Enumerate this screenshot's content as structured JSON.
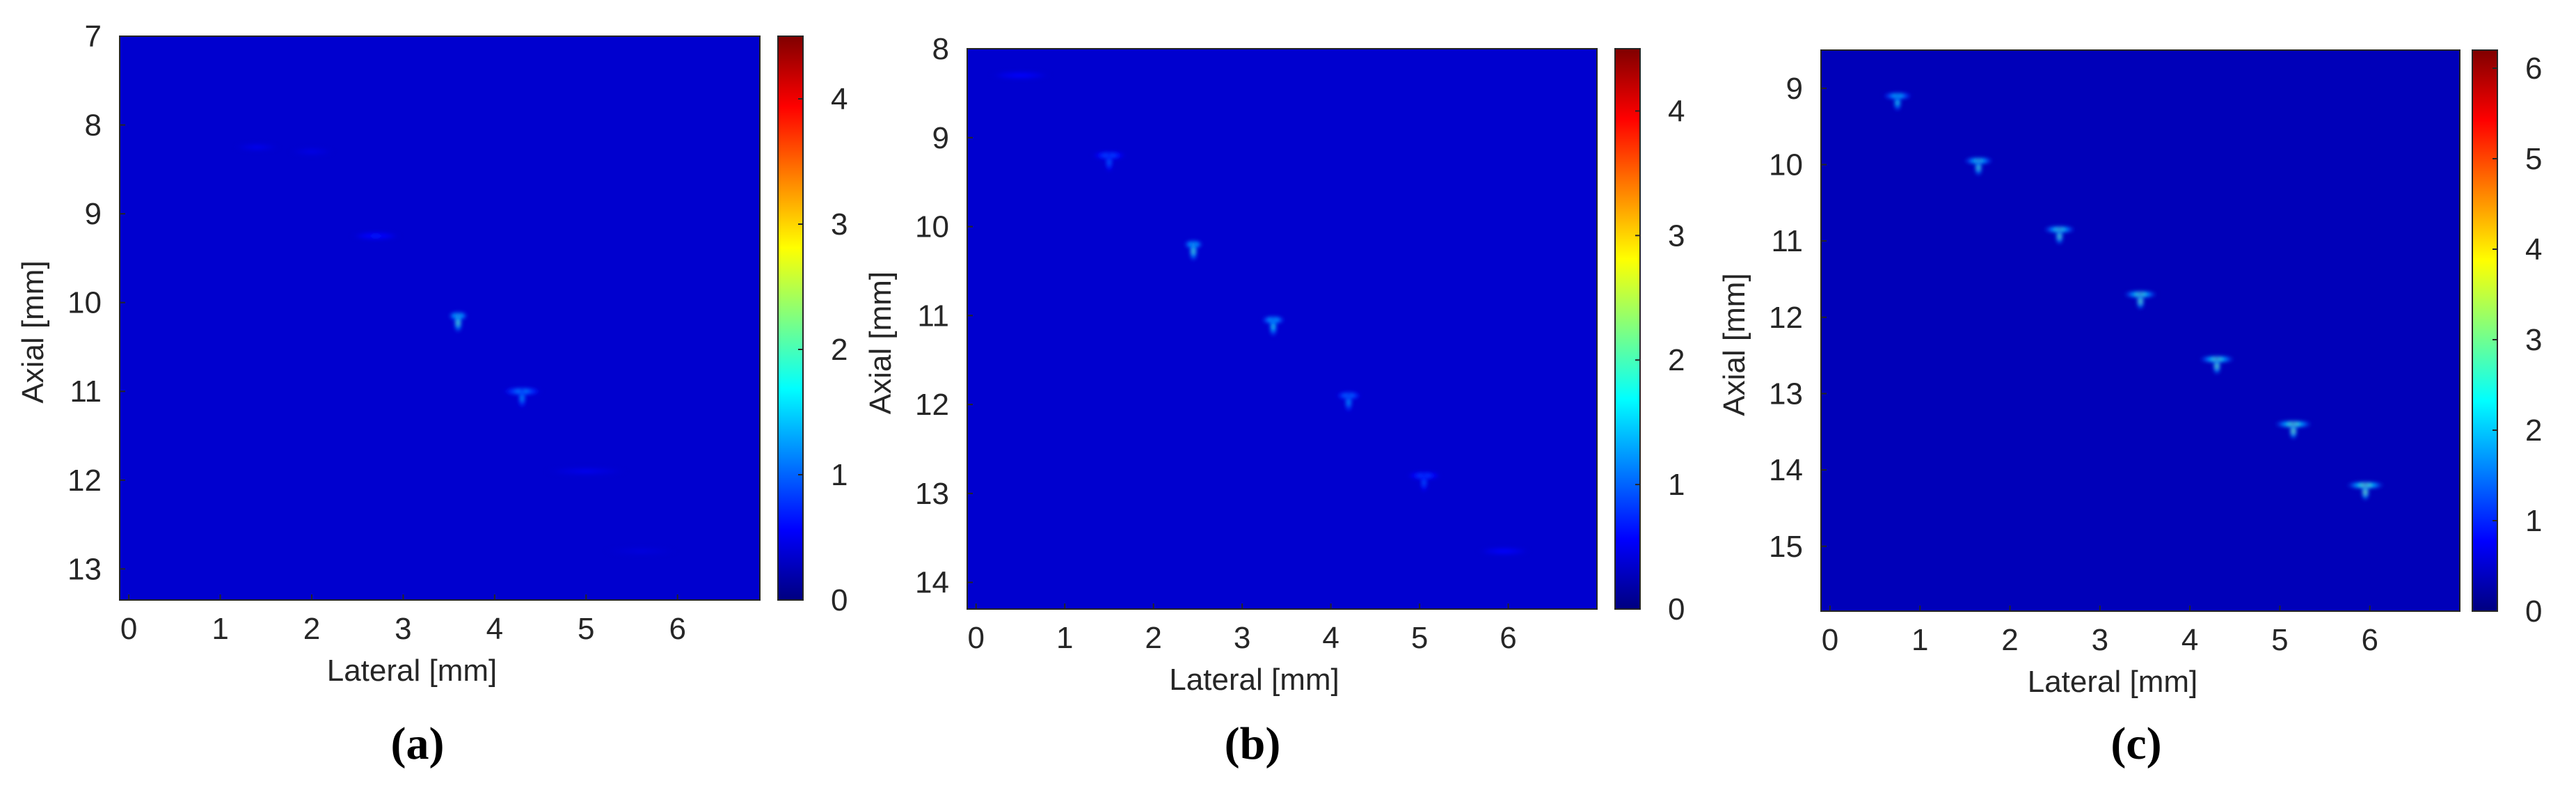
{
  "colors": {
    "background": "#1a0f8c",
    "colormap": "jet",
    "axis": "#262626"
  },
  "chart_data": [
    {
      "type": "heatmap",
      "panel_label": "(a)",
      "xlabel": "Lateral [mm]",
      "ylabel": "Axial [mm]",
      "xlim": [
        -0.1,
        6.9
      ],
      "ylim": [
        7,
        13.35
      ],
      "y_reversed": true,
      "xticks": [
        0,
        1,
        2,
        3,
        4,
        5,
        6
      ],
      "yticks": [
        7,
        8,
        9,
        10,
        11,
        12,
        13
      ],
      "colorbar": {
        "min": 0,
        "max": 4.5,
        "ticks": [
          0,
          1,
          2,
          3,
          4
        ]
      },
      "background_value": 0.35,
      "bright_spots": [
        {
          "lateral": 1.4,
          "axial": 8.25,
          "peak": 0.55,
          "width": 0.5
        },
        {
          "lateral": 2.0,
          "axial": 8.3,
          "peak": 0.5,
          "width": 0.5
        },
        {
          "lateral": 2.7,
          "axial": 9.25,
          "peak": 0.8,
          "width": 0.55
        },
        {
          "lateral": 3.6,
          "axial": 10.15,
          "peak": 2.7,
          "width": 0.22
        },
        {
          "lateral": 4.3,
          "axial": 11.0,
          "peak": 1.7,
          "width": 0.45
        },
        {
          "lateral": 5.0,
          "axial": 11.9,
          "peak": 0.55,
          "width": 0.9
        },
        {
          "lateral": 5.6,
          "axial": 12.8,
          "peak": 0.45,
          "width": 0.8
        }
      ]
    },
    {
      "type": "heatmap",
      "panel_label": "(b)",
      "xlabel": "Lateral [mm]",
      "ylabel": "Axial [mm]",
      "xlim": [
        -0.1,
        7.0
      ],
      "ylim": [
        8,
        14.3
      ],
      "y_reversed": true,
      "xticks": [
        0,
        1,
        2,
        3,
        4,
        5,
        6
      ],
      "yticks": [
        8,
        9,
        10,
        11,
        12,
        13,
        14
      ],
      "colorbar": {
        "min": 0,
        "max": 4.5,
        "ticks": [
          0,
          1,
          2,
          3,
          4
        ]
      },
      "background_value": 0.35,
      "bright_spots": [
        {
          "lateral": 0.5,
          "axial": 8.3,
          "peak": 0.7,
          "width": 0.7
        },
        {
          "lateral": 1.5,
          "axial": 9.2,
          "peak": 1.3,
          "width": 0.4
        },
        {
          "lateral": 2.45,
          "axial": 10.2,
          "peak": 2.6,
          "width": 0.22
        },
        {
          "lateral": 3.35,
          "axial": 11.05,
          "peak": 2.3,
          "width": 0.28
        },
        {
          "lateral": 4.2,
          "axial": 11.9,
          "peak": 1.7,
          "width": 0.3
        },
        {
          "lateral": 5.05,
          "axial": 12.8,
          "peak": 1.2,
          "width": 0.4
        },
        {
          "lateral": 5.95,
          "axial": 13.65,
          "peak": 0.7,
          "width": 0.6
        }
      ]
    },
    {
      "type": "heatmap",
      "panel_label": "(c)",
      "xlabel": "Lateral [mm]",
      "ylabel": "Axial [mm]",
      "xlim": [
        -0.1,
        7.0
      ],
      "ylim": [
        8.5,
        15.85
      ],
      "y_reversed": true,
      "xticks": [
        0,
        1,
        2,
        3,
        4,
        5,
        6
      ],
      "yticks": [
        9,
        10,
        11,
        12,
        13,
        14,
        15
      ],
      "colorbar": {
        "min": 0,
        "max": 6.2,
        "ticks": [
          0,
          1,
          2,
          3,
          4,
          5,
          6
        ]
      },
      "background_value": 0.35,
      "bright_spots": [
        {
          "lateral": 0.75,
          "axial": 9.1,
          "peak": 3.2,
          "width": 0.35
        },
        {
          "lateral": 1.65,
          "axial": 9.95,
          "peak": 3.6,
          "width": 0.35
        },
        {
          "lateral": 2.55,
          "axial": 10.85,
          "peak": 3.8,
          "width": 0.38
        },
        {
          "lateral": 3.45,
          "axial": 11.7,
          "peak": 4.0,
          "width": 0.4
        },
        {
          "lateral": 4.3,
          "axial": 12.55,
          "peak": 4.0,
          "width": 0.42
        },
        {
          "lateral": 5.15,
          "axial": 13.4,
          "peak": 4.2,
          "width": 0.45
        },
        {
          "lateral": 5.95,
          "axial": 14.2,
          "peak": 4.3,
          "width": 0.45
        }
      ]
    }
  ]
}
